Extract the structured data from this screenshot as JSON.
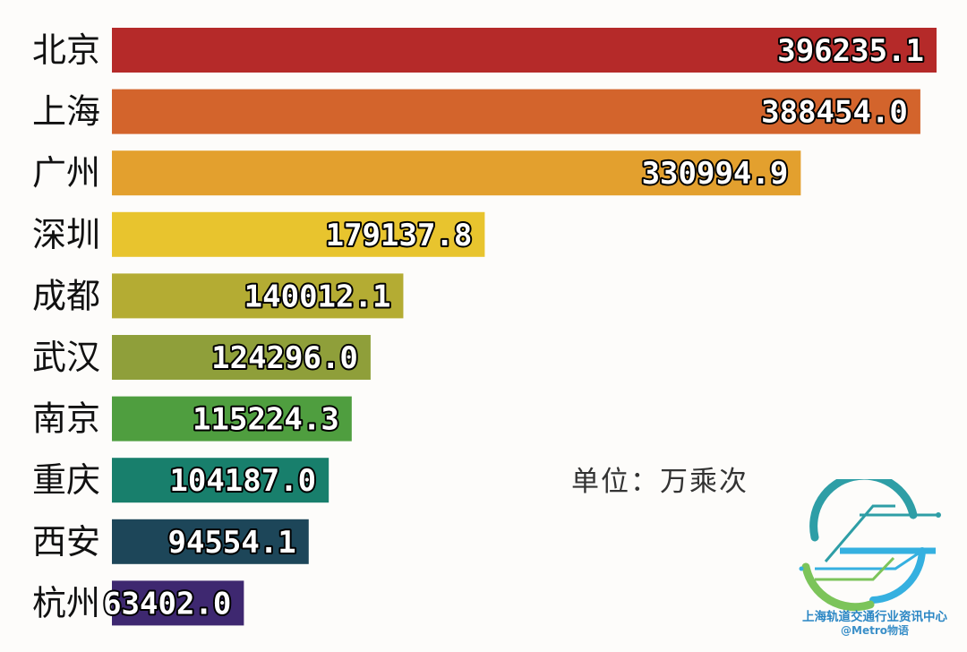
{
  "chart_data": {
    "type": "bar",
    "orientation": "horizontal",
    "categories": [
      "北京",
      "上海",
      "广州",
      "深圳",
      "成都",
      "武汉",
      "南京",
      "重庆",
      "西安",
      "杭州"
    ],
    "values": [
      396235.1,
      388454.0,
      330994.9,
      179137.8,
      140012.1,
      124296.0,
      115224.3,
      104187.0,
      94554.1,
      63402.0
    ],
    "value_labels": [
      "396235.1",
      "388454.0",
      "330994.9",
      "179137.8",
      "140012.1",
      "124296.0",
      "115224.3",
      "104187.0",
      "94554.1",
      "63402.0"
    ],
    "bar_colors": [
      "#b52a29",
      "#d3642c",
      "#e3a02e",
      "#e8c42e",
      "#b4ac33",
      "#8f9f3a",
      "#4f9e3f",
      "#187f6c",
      "#1d4659",
      "#3e2870"
    ],
    "xlim": [
      0,
      396235.1
    ],
    "grid": false,
    "legend": "none"
  },
  "unit_label": "单位：万乘次",
  "logo": {
    "org_name": "上海轨道交通行业资讯中心",
    "handle": "@Metro物语",
    "colors": [
      "#2e9ea6",
      "#35b0e0",
      "#7cc45a"
    ]
  }
}
